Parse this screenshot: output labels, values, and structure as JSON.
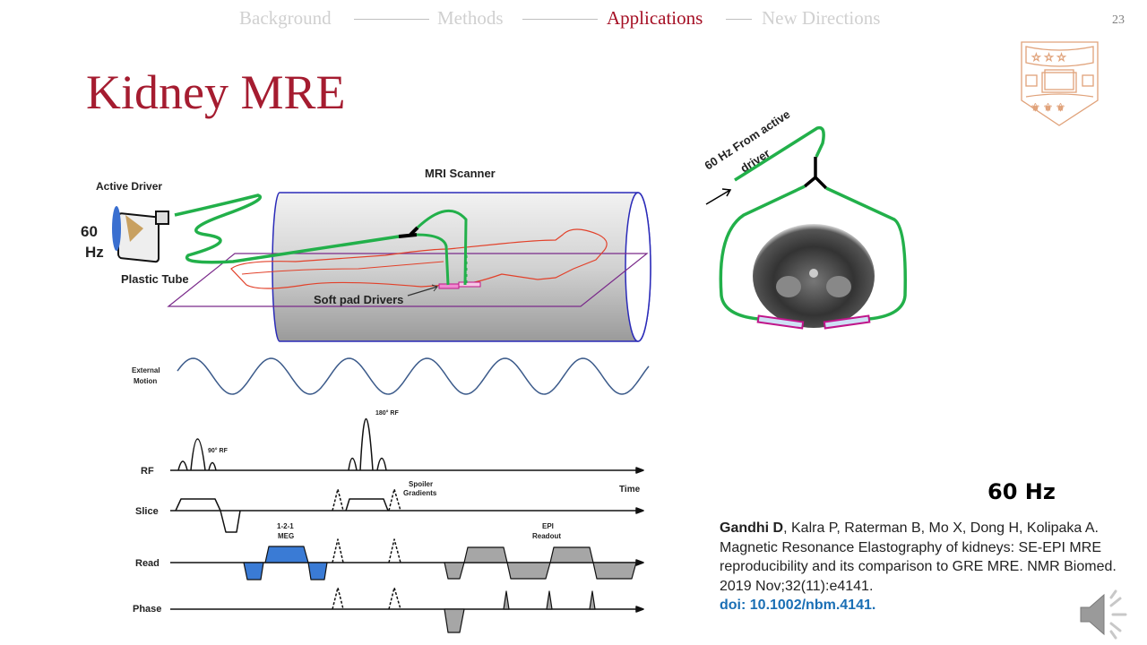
{
  "nav": {
    "items": [
      {
        "label": "Background",
        "active": false
      },
      {
        "label": "Methods",
        "active": false
      },
      {
        "label": "Applications",
        "active": true
      },
      {
        "label": "New Directions",
        "active": false
      }
    ]
  },
  "page_number": "23",
  "title": "Kidney MRE",
  "setup_figure": {
    "active_driver": "Active Driver",
    "freq_top": "60",
    "freq_bottom": "Hz",
    "mri_scanner": "MRI Scanner",
    "plastic_tube": "Plastic Tube",
    "soft_pad_drivers": "Soft pad Drivers"
  },
  "axial_figure": {
    "line1": "60 Hz From active",
    "line2": "driver"
  },
  "sequence_figure": {
    "external_motion_1": "External",
    "external_motion_2": "Motion",
    "rf": "RF",
    "slice": "Slice",
    "read": "Read",
    "phase": "Phase",
    "rf90": "90° RF",
    "rf180": "180° RF",
    "spoiler_1": "Spoiler",
    "spoiler_2": "Gradients",
    "time": "Time",
    "meg_1": "1-2-1",
    "meg_2": "MEG",
    "epi_1": "EPI",
    "epi_2": "Readout"
  },
  "frequency_label": "60 Hz",
  "reference": {
    "first_author": "Gandhi D",
    "rest": ", Kalra P, Raterman B, Mo X, Dong H, Kolipaka A. Magnetic Resonance Elastography of kidneys: SE-EPI MRE reproducibility and its comparison to GRE MRE. NMR Biomed. 2019 Nov;32(11):e4141.",
    "doi": "doi: 10.1002/nbm.4141."
  },
  "colors": {
    "accent": "#a51c30",
    "tube": "#22b04a",
    "meg": "#3a7bd5",
    "epi": "#a6a6a6",
    "doi": "#1a6fb5"
  },
  "icons": [
    "university-shield-logo",
    "speaker-icon"
  ]
}
